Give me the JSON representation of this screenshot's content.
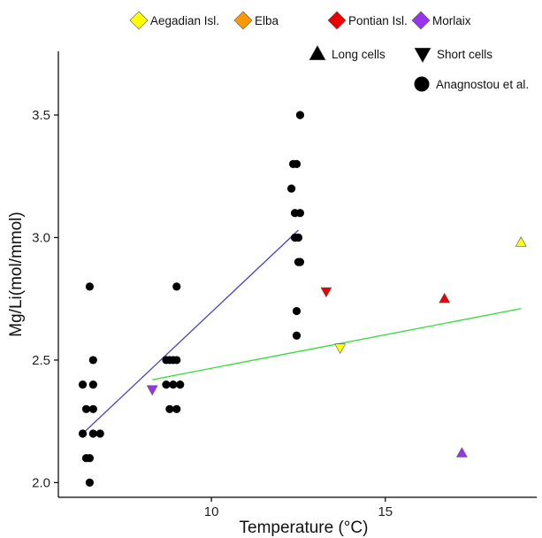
{
  "chart_data": {
    "type": "scatter",
    "xlabel": "Temperature (°C)",
    "ylabel": "Mg/Li(mol/mmol)",
    "xlim": [
      5.6,
      19.3
    ],
    "ylim": [
      1.94,
      3.76
    ],
    "x_ticks": [
      10,
      15
    ],
    "y_ticks": [
      2.0,
      2.5,
      3.0,
      3.5
    ],
    "x_tick_labels": [
      "10",
      "15"
    ],
    "y_tick_labels": [
      "2.0",
      "2.5",
      "3.0",
      "3.5"
    ],
    "grid": false,
    "legend_position": "top",
    "legend": {
      "locations": [
        {
          "label": "Aegadian Isl.",
          "color": "#ffff00",
          "shape": "diamond"
        },
        {
          "label": "Elba",
          "color": "#ff9900",
          "shape": "diamond"
        },
        {
          "label": "Pontian Isl.",
          "color": "#ee0000",
          "shape": "diamond"
        },
        {
          "label": "Morlaix",
          "color": "#9933ee",
          "shape": "diamond"
        }
      ],
      "shapes": [
        {
          "label": "Long cells",
          "shape": "triangle-up"
        },
        {
          "label": "Short cells",
          "shape": "triangle-down"
        },
        {
          "label": "Anagnostou et al.",
          "shape": "circle"
        }
      ]
    },
    "series": [
      {
        "marker": "circle",
        "color": "#000000",
        "points": [
          [
            6.3,
            2.4
          ],
          [
            6.3,
            2.2
          ],
          [
            6.4,
            2.3
          ],
          [
            6.4,
            2.1
          ],
          [
            6.5,
            2.1
          ],
          [
            6.5,
            2.0
          ],
          [
            6.5,
            2.8
          ],
          [
            6.6,
            2.5
          ],
          [
            6.6,
            2.4
          ],
          [
            6.6,
            2.3
          ],
          [
            6.6,
            2.2
          ],
          [
            6.8,
            2.2
          ],
          [
            8.7,
            2.4
          ],
          [
            8.8,
            2.5
          ],
          [
            8.8,
            2.3
          ],
          [
            8.9,
            2.5
          ],
          [
            8.9,
            2.4
          ],
          [
            9.0,
            2.8
          ],
          [
            9.0,
            2.5
          ],
          [
            9.0,
            2.3
          ],
          [
            9.1,
            2.4
          ],
          [
            8.7,
            2.5
          ],
          [
            12.3,
            3.2
          ],
          [
            12.35,
            3.3
          ],
          [
            12.4,
            3.0
          ],
          [
            12.4,
            3.1
          ],
          [
            12.45,
            3.3
          ],
          [
            12.45,
            2.7
          ],
          [
            12.45,
            2.6
          ],
          [
            12.5,
            2.9
          ],
          [
            12.5,
            3.0
          ],
          [
            12.55,
            3.1
          ],
          [
            12.55,
            2.9
          ],
          [
            12.55,
            3.5
          ]
        ]
      },
      {
        "marker": "triangle-up",
        "points": [
          {
            "x": 18.9,
            "y": 2.98,
            "color": "#ffff00"
          },
          {
            "x": 16.7,
            "y": 2.75,
            "color": "#ee0000"
          },
          {
            "x": 17.2,
            "y": 2.12,
            "color": "#9933ee"
          }
        ]
      },
      {
        "marker": "triangle-down",
        "points": [
          {
            "x": 13.7,
            "y": 2.55,
            "color": "#ffff00"
          },
          {
            "x": 13.3,
            "y": 2.78,
            "color": "#ee0000"
          },
          {
            "x": 8.3,
            "y": 2.38,
            "color": "#9933ee"
          }
        ]
      }
    ],
    "trend_lines": [
      {
        "color": "#4444cc",
        "x": [
          6.3,
          12.5
        ],
        "y": [
          2.2,
          3.03
        ]
      },
      {
        "color": "#33dd33",
        "x": [
          8.3,
          18.9
        ],
        "y": [
          2.42,
          2.71
        ]
      }
    ]
  }
}
